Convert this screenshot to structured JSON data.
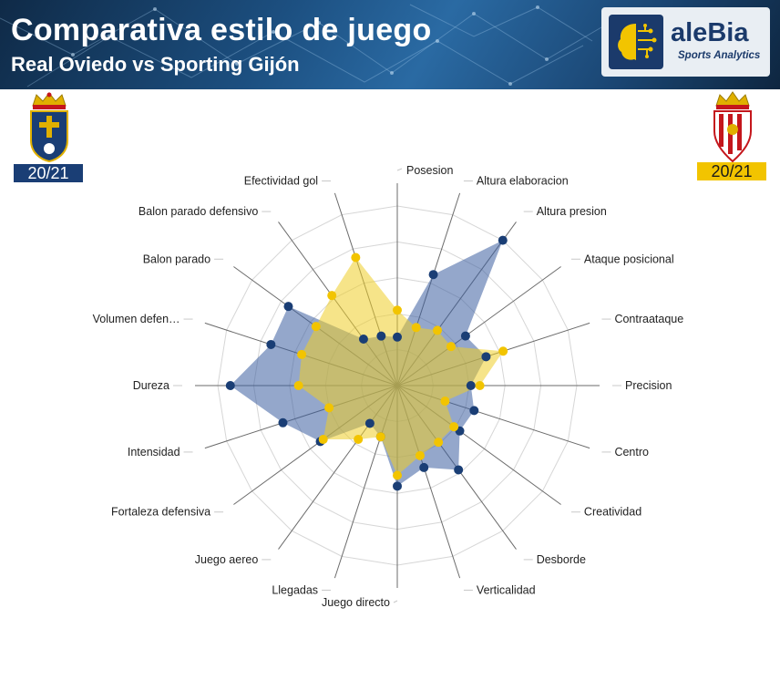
{
  "header": {
    "title": "Comparativa estilo de juego",
    "subtitle": "Real Oviedo vs Sporting Gijón"
  },
  "brand": {
    "name": "aleBia",
    "tagline": "Sports Analytics"
  },
  "teams": {
    "home": {
      "season": "20/21",
      "color": "#1a3e75"
    },
    "away": {
      "season": "20/21",
      "color": "#f2c400"
    }
  },
  "chart_data": {
    "type": "radar",
    "max": 100,
    "grid_levels": 5,
    "axes": [
      "Posesion",
      "Altura elaboracion",
      "Altura presion",
      "Ataque posicional",
      "Contraataque",
      "Precision",
      "Centro",
      "Creatividad",
      "Desborde",
      "Verticalidad",
      "Juego directo",
      "Llegadas",
      "Juego aereo",
      "Fortaleza defensiva",
      "Intensidad",
      "Dureza",
      "Volumen defen…",
      "Balon parado",
      "Balon parado defensivo",
      "Efectividad gol"
    ],
    "series": [
      {
        "color": "#1a3e75",
        "fill": "rgba(60,95,160,0.55)",
        "values": [
          27,
          65,
          100,
          47,
          52,
          41,
          45,
          43,
          58,
          48,
          56,
          30,
          26,
          53,
          67,
          93,
          74,
          75,
          32,
          29
        ]
      },
      {
        "color": "#f2c400",
        "fill": "rgba(238,205,40,0.55)",
        "values": [
          42,
          34,
          38,
          37,
          62,
          46,
          28,
          39,
          39,
          41,
          50,
          30,
          37,
          51,
          40,
          55,
          56,
          56,
          62,
          75
        ]
      }
    ]
  }
}
